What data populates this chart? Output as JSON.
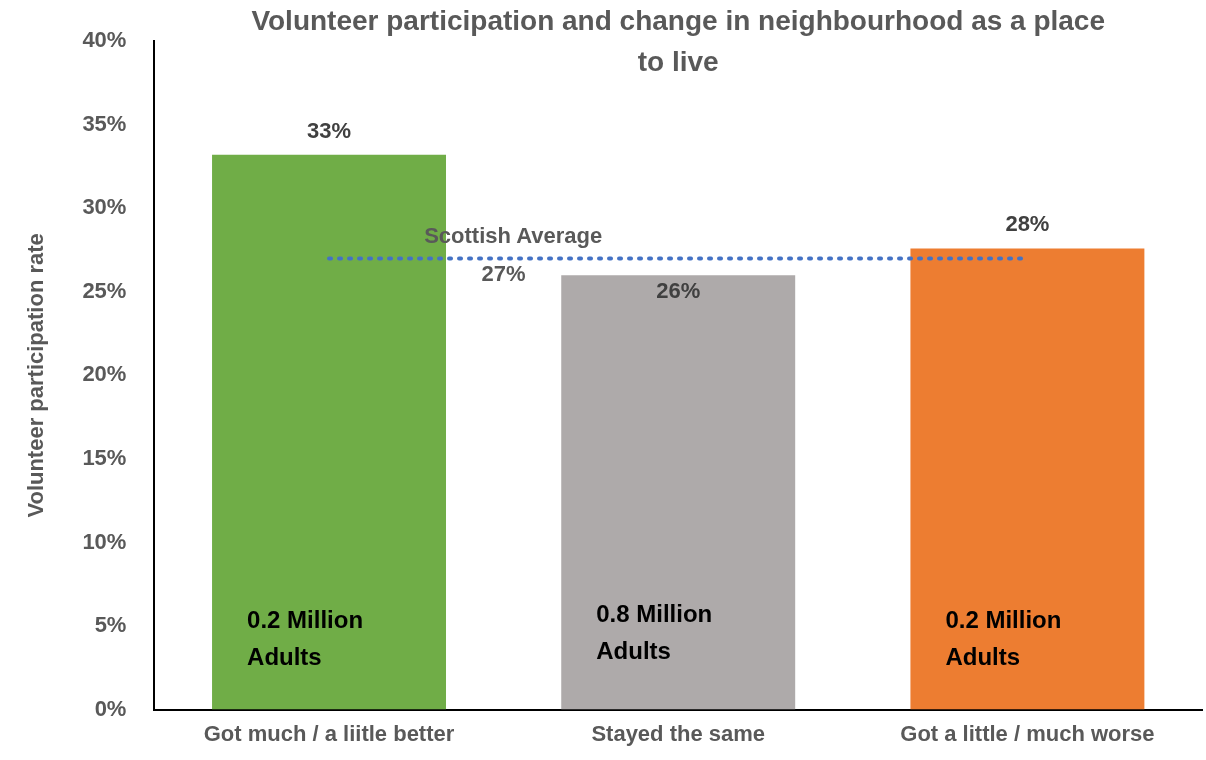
{
  "chart_data": {
    "type": "bar",
    "title": "Volunteer participation and change in neighbourhood as a place to live",
    "ylabel": "Volunteer participation rate",
    "categories": [
      "Got much / a liitle better",
      "Stayed the same",
      "Got a little / much worse"
    ],
    "values": [
      33.2,
      26,
      27.6
    ],
    "colors": [
      "#70ad47",
      "#aeaaaa",
      "#ed7d31"
    ],
    "value_labels": [
      "33%",
      "26%",
      "28%"
    ],
    "ylim": [
      0,
      40
    ],
    "yticks": [
      {
        "value": 0,
        "label": "0%"
      },
      {
        "value": 5,
        "label": "5%"
      },
      {
        "value": 10,
        "label": "10%"
      },
      {
        "value": 15,
        "label": "15%"
      },
      {
        "value": 20,
        "label": "20%"
      },
      {
        "value": 25,
        "label": "25%"
      },
      {
        "value": 30,
        "label": "30%"
      },
      {
        "value": 35,
        "label": "35%"
      },
      {
        "value": 40,
        "label": "40%"
      }
    ],
    "ref_lines": [
      {
        "axis": "y",
        "value": 27,
        "label": "Scottish Average",
        "color": "#4472c4",
        "line_style": "dotted"
      }
    ],
    "annotations": [
      {
        "text": "27%",
        "y": 27
      },
      "0.2 Million Adults",
      "0.8 Million Adults",
      "0.2 Million Adults"
    ],
    "grid": false,
    "legend": false
  }
}
